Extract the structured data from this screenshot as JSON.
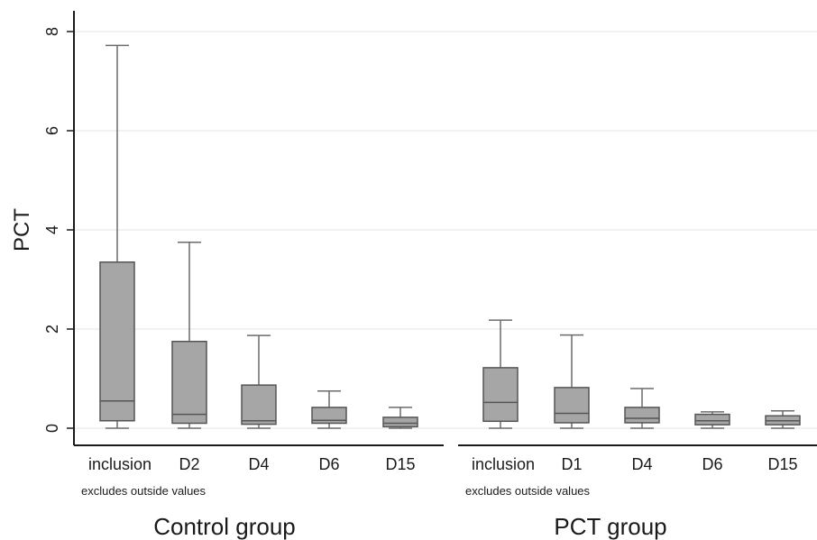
{
  "chart_data": {
    "type": "boxplot",
    "ylabel": "PCT",
    "ylim": [
      0,
      8.3
    ],
    "yticks": [
      0,
      2,
      4,
      6,
      8
    ],
    "grid": true,
    "colors": {
      "box_fill": "#a6a6a6",
      "box_stroke": "#555555",
      "whisker": "#6b6b6b",
      "grid": "#e3e3e3",
      "axis": "#1a1a1a"
    },
    "panels": [
      {
        "group": "Control group",
        "note": "excludes outside values",
        "categories": [
          "inclusion",
          "D2",
          "D4",
          "D6",
          "D15"
        ],
        "boxes": [
          {
            "min": 0,
            "q1": 0.15,
            "median": 0.55,
            "q3": 3.35,
            "max": 7.72
          },
          {
            "min": 0,
            "q1": 0.1,
            "median": 0.28,
            "q3": 1.75,
            "max": 3.75
          },
          {
            "min": 0,
            "q1": 0.08,
            "median": 0.15,
            "q3": 0.87,
            "max": 1.87
          },
          {
            "min": 0,
            "q1": 0.1,
            "median": 0.16,
            "q3": 0.42,
            "max": 0.75
          },
          {
            "min": 0,
            "q1": 0.03,
            "median": 0.1,
            "q3": 0.22,
            "max": 0.42
          }
        ]
      },
      {
        "group": "PCT group",
        "note": "excludes outside values",
        "categories": [
          "inclusion",
          "D1",
          "D4",
          "D6",
          "D15"
        ],
        "boxes": [
          {
            "min": 0,
            "q1": 0.14,
            "median": 0.52,
            "q3": 1.22,
            "max": 2.18
          },
          {
            "min": 0,
            "q1": 0.11,
            "median": 0.3,
            "q3": 0.82,
            "max": 1.88
          },
          {
            "min": 0,
            "q1": 0.11,
            "median": 0.2,
            "q3": 0.42,
            "max": 0.8
          },
          {
            "min": 0,
            "q1": 0.07,
            "median": 0.15,
            "q3": 0.28,
            "max": 0.33
          },
          {
            "min": 0,
            "q1": 0.07,
            "median": 0.15,
            "q3": 0.25,
            "max": 0.35
          }
        ]
      }
    ]
  }
}
